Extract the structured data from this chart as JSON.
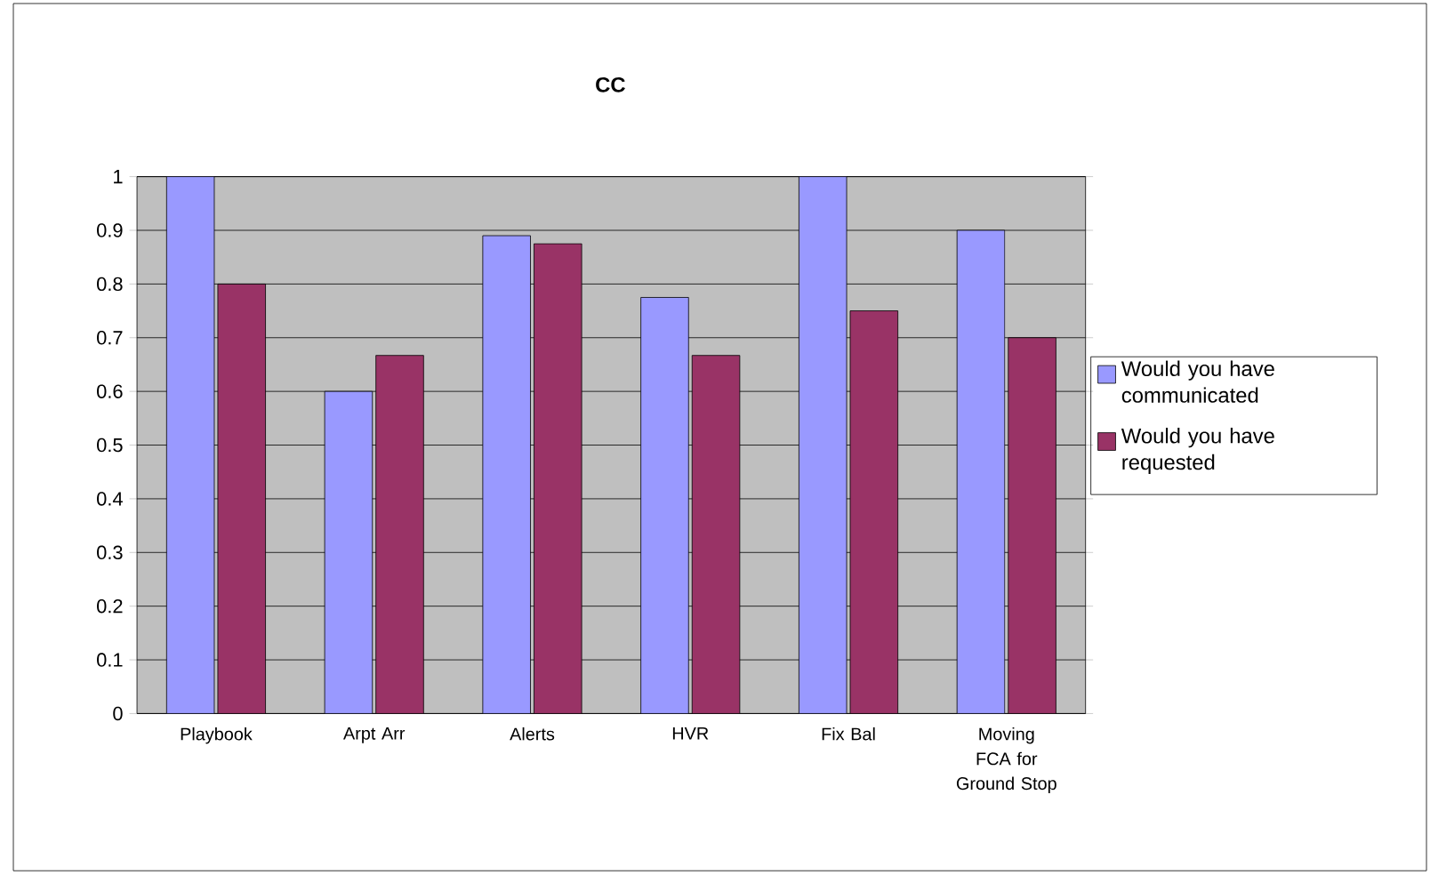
{
  "chart_data": {
    "type": "bar",
    "title": "CC",
    "categories": [
      "Playbook",
      "Arpt Arr",
      "Alerts",
      "HVR",
      "Fix Bal",
      "Moving FCA for Ground Stop"
    ],
    "series": [
      {
        "name": "Would you have communicated",
        "color": "#9999ff",
        "values": [
          1,
          0.6,
          0.89,
          0.775,
          1,
          0.9
        ]
      },
      {
        "name": "Would you have requested",
        "color": "#993366",
        "values": [
          0.8,
          0.667,
          0.875,
          0.667,
          0.75,
          0.7
        ]
      }
    ],
    "ylim": [
      0,
      1
    ],
    "yticks": [
      0,
      0.1,
      0.2,
      0.3,
      0.4,
      0.5,
      0.6,
      0.7,
      0.8,
      0.9,
      1
    ],
    "grid": "y",
    "legend": "right"
  }
}
